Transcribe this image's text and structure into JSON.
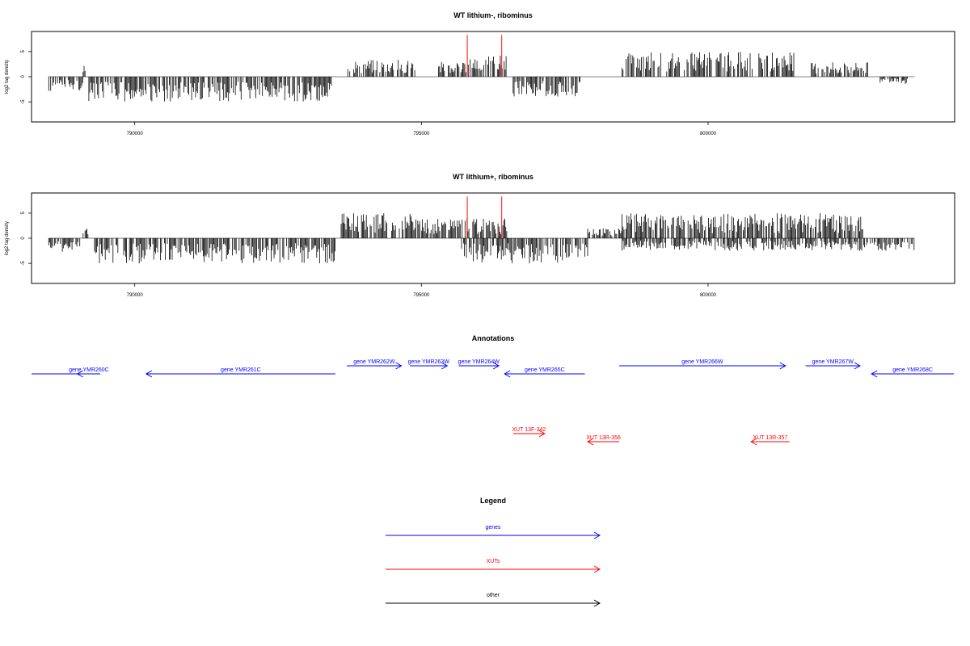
{
  "colors": {
    "signal": "#000000",
    "marker": "#ff3333",
    "gene": "#0000ff",
    "xut": "#ff0000",
    "other": "#000000",
    "axis": "#000000"
  },
  "chart_data": [
    {
      "type": "bar",
      "title": "WT lithium-, ribominus",
      "ylabel": "log2 tag density",
      "xlim": [
        788200,
        804300
      ],
      "ylim": [
        -9,
        9
      ],
      "xticks": [
        790000,
        795000,
        800000
      ],
      "xtick_labels": [
        "790000",
        "795000",
        "800000"
      ],
      "yticks": [
        -5,
        0,
        5
      ],
      "ytick_labels": [
        "-5",
        "0",
        "5"
      ],
      "markers_x": [
        795800,
        796400
      ],
      "segments": [
        {
          "x0": 788500,
          "x1": 789100,
          "dir": -1,
          "amp": 3
        },
        {
          "x0": 789100,
          "x1": 789150,
          "dir": 1,
          "amp": 3
        },
        {
          "x0": 789200,
          "x1": 793500,
          "dir": -1,
          "amp": 5
        },
        {
          "x0": 793700,
          "x1": 794900,
          "dir": 1,
          "amp": 3.5
        },
        {
          "x0": 795300,
          "x1": 795800,
          "dir": 1,
          "amp": 3
        },
        {
          "x0": 795800,
          "x1": 796500,
          "dir": 1,
          "amp": 4.5
        },
        {
          "x0": 796600,
          "x1": 797800,
          "dir": -1,
          "amp": 4
        },
        {
          "x0": 798500,
          "x1": 801500,
          "dir": 1,
          "amp": 5
        },
        {
          "x0": 801800,
          "x1": 802800,
          "dir": 1,
          "amp": 3
        },
        {
          "x0": 803000,
          "x1": 803500,
          "dir": -1,
          "amp": 1.5
        }
      ]
    },
    {
      "type": "bar",
      "title": "WT lithium+, ribominus",
      "ylabel": "log2 tag density",
      "xlim": [
        788200,
        804300
      ],
      "ylim": [
        -9,
        9
      ],
      "xticks": [
        790000,
        795000,
        800000
      ],
      "xtick_labels": [
        "790000",
        "795000",
        "800000"
      ],
      "yticks": [
        -5,
        0,
        5
      ],
      "ytick_labels": [
        "-5",
        "0",
        "5"
      ],
      "markers_x": [
        795800,
        796400
      ],
      "segments": [
        {
          "x0": 788500,
          "x1": 789050,
          "dir": -1,
          "amp": 3
        },
        {
          "x0": 789100,
          "x1": 789200,
          "dir": 1,
          "amp": 2
        },
        {
          "x0": 789300,
          "x1": 793500,
          "dir": -1,
          "amp": 5
        },
        {
          "x0": 793600,
          "x1": 795000,
          "dir": 1,
          "amp": 5
        },
        {
          "x0": 795000,
          "x1": 796500,
          "dir": 1,
          "amp": 4
        },
        {
          "x0": 795700,
          "x1": 797900,
          "dir": -1,
          "amp": 5
        },
        {
          "x0": 797900,
          "x1": 798500,
          "dir": 1,
          "amp": 2
        },
        {
          "x0": 798500,
          "x1": 802700,
          "dir": 1,
          "amp": 5
        },
        {
          "x0": 798500,
          "x1": 803600,
          "dir": -1,
          "amp": 2.5
        }
      ]
    }
  ],
  "annotations": {
    "title": "Annotations",
    "features": [
      {
        "type": "gene",
        "label": "",
        "start": 788200,
        "end": 789050,
        "strand": "-"
      },
      {
        "type": "gene",
        "label": "gene YMR260C",
        "start": 789000,
        "end": 789400,
        "strand": "-"
      },
      {
        "type": "gene",
        "label": "gene YMR261C",
        "start": 790200,
        "end": 793500,
        "strand": "-"
      },
      {
        "type": "gene",
        "label": "gene YMR262W",
        "start": 793700,
        "end": 794650,
        "strand": "+"
      },
      {
        "type": "gene",
        "label": "gene YMR263W",
        "start": 794800,
        "end": 795450,
        "strand": "+"
      },
      {
        "type": "gene",
        "label": "gene YMR264W",
        "start": 795650,
        "end": 796350,
        "strand": "+"
      },
      {
        "type": "gene",
        "label": "gene YMR265C",
        "start": 796450,
        "end": 797850,
        "strand": "-"
      },
      {
        "type": "gene",
        "label": "gene YMR266W",
        "start": 798450,
        "end": 801350,
        "strand": "+"
      },
      {
        "type": "gene",
        "label": "gene YMR267W",
        "start": 801700,
        "end": 802650,
        "strand": "+"
      },
      {
        "type": "gene",
        "label": "gene YMR268C",
        "start": 802850,
        "end": 804300,
        "strand": "-"
      },
      {
        "type": "xut",
        "label": "XUT 13F-342",
        "start": 796600,
        "end": 797150,
        "strand": "+"
      },
      {
        "type": "xut",
        "label": "XUT 13R-356",
        "start": 797900,
        "end": 798450,
        "strand": "-"
      },
      {
        "type": "xut",
        "label": "XUT 13R-357",
        "start": 800750,
        "end": 801420,
        "strand": "-"
      }
    ]
  },
  "legend": {
    "title": "Legend",
    "items": [
      {
        "label": "genes",
        "color": "#0000ff"
      },
      {
        "label": "XUTs",
        "color": "#ff0000"
      },
      {
        "label": "other",
        "color": "#000000"
      }
    ]
  }
}
